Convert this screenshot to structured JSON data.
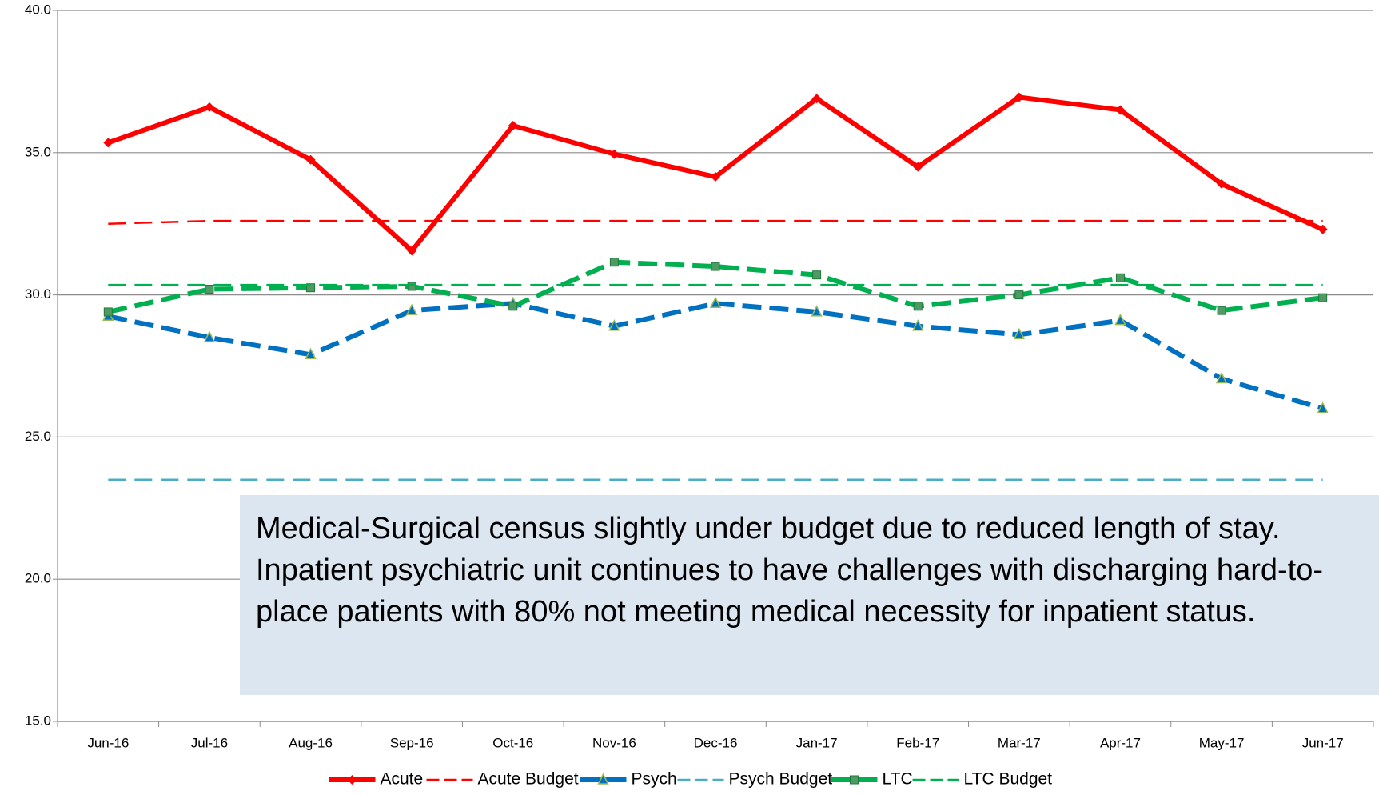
{
  "chart_data": {
    "type": "line",
    "categories": [
      "Jun-16",
      "Jul-16",
      "Aug-16",
      "Sep-16",
      "Oct-16",
      "Nov-16",
      "Dec-16",
      "Jan-17",
      "Feb-17",
      "Mar-17",
      "Apr-17",
      "May-17",
      "Jun-17"
    ],
    "series": [
      {
        "name": "Acute",
        "color": "#ff0000",
        "dash": "solid",
        "marker": "diamond",
        "values": [
          35.35,
          36.6,
          34.75,
          31.55,
          35.95,
          34.95,
          34.15,
          36.9,
          34.5,
          36.95,
          36.5,
          33.9,
          32.3
        ]
      },
      {
        "name": "Acute Budget",
        "color": "#ff0000",
        "dash": "dashed",
        "values": [
          32.5,
          32.6,
          32.6,
          32.6,
          32.6,
          32.6,
          32.6,
          32.6,
          32.6,
          32.6,
          32.6,
          32.6,
          32.6
        ]
      },
      {
        "name": "Psych",
        "color": "#0070c0",
        "dash": "dashed",
        "marker": "triangle",
        "values": [
          29.25,
          28.5,
          27.9,
          29.45,
          29.7,
          28.9,
          29.7,
          29.4,
          28.9,
          28.6,
          29.1,
          27.05,
          26.0
        ]
      },
      {
        "name": "Psych Budget",
        "color": "#4bacc6",
        "dash": "dashed",
        "values": [
          23.5,
          23.5,
          23.5,
          23.5,
          23.5,
          23.5,
          23.5,
          23.5,
          23.5,
          23.5,
          23.5,
          23.5,
          23.5
        ]
      },
      {
        "name": "LTC",
        "color": "#00b050",
        "dash": "dashed",
        "marker": "square",
        "values": [
          29.4,
          30.2,
          30.25,
          30.3,
          29.6,
          31.15,
          31.0,
          30.7,
          29.6,
          30.0,
          30.6,
          29.45,
          29.9
        ]
      },
      {
        "name": "LTC Budget",
        "color": "#00b050",
        "dash": "dashed",
        "values": [
          30.35,
          30.35,
          30.35,
          30.35,
          30.35,
          30.35,
          30.35,
          30.35,
          30.35,
          30.35,
          30.35,
          30.35,
          30.35
        ]
      }
    ],
    "ylim": [
      15,
      40
    ],
    "yticks": [
      {
        "value": 15,
        "label": "15.0"
      },
      {
        "value": 20,
        "label": "20.0"
      },
      {
        "value": 25,
        "label": "25.0"
      },
      {
        "value": 30,
        "label": "30.0"
      },
      {
        "value": 35,
        "label": "35.0"
      },
      {
        "value": 40,
        "label": "40.0"
      }
    ],
    "grid": true,
    "legend": "bottom",
    "annotation": "Medical-Surgical census slightly under budget due to reduced length of stay.  Inpatient psychiatric unit continues to have challenges with discharging hard-to-place patients with 80% not meeting medical necessity for inpatient status."
  }
}
